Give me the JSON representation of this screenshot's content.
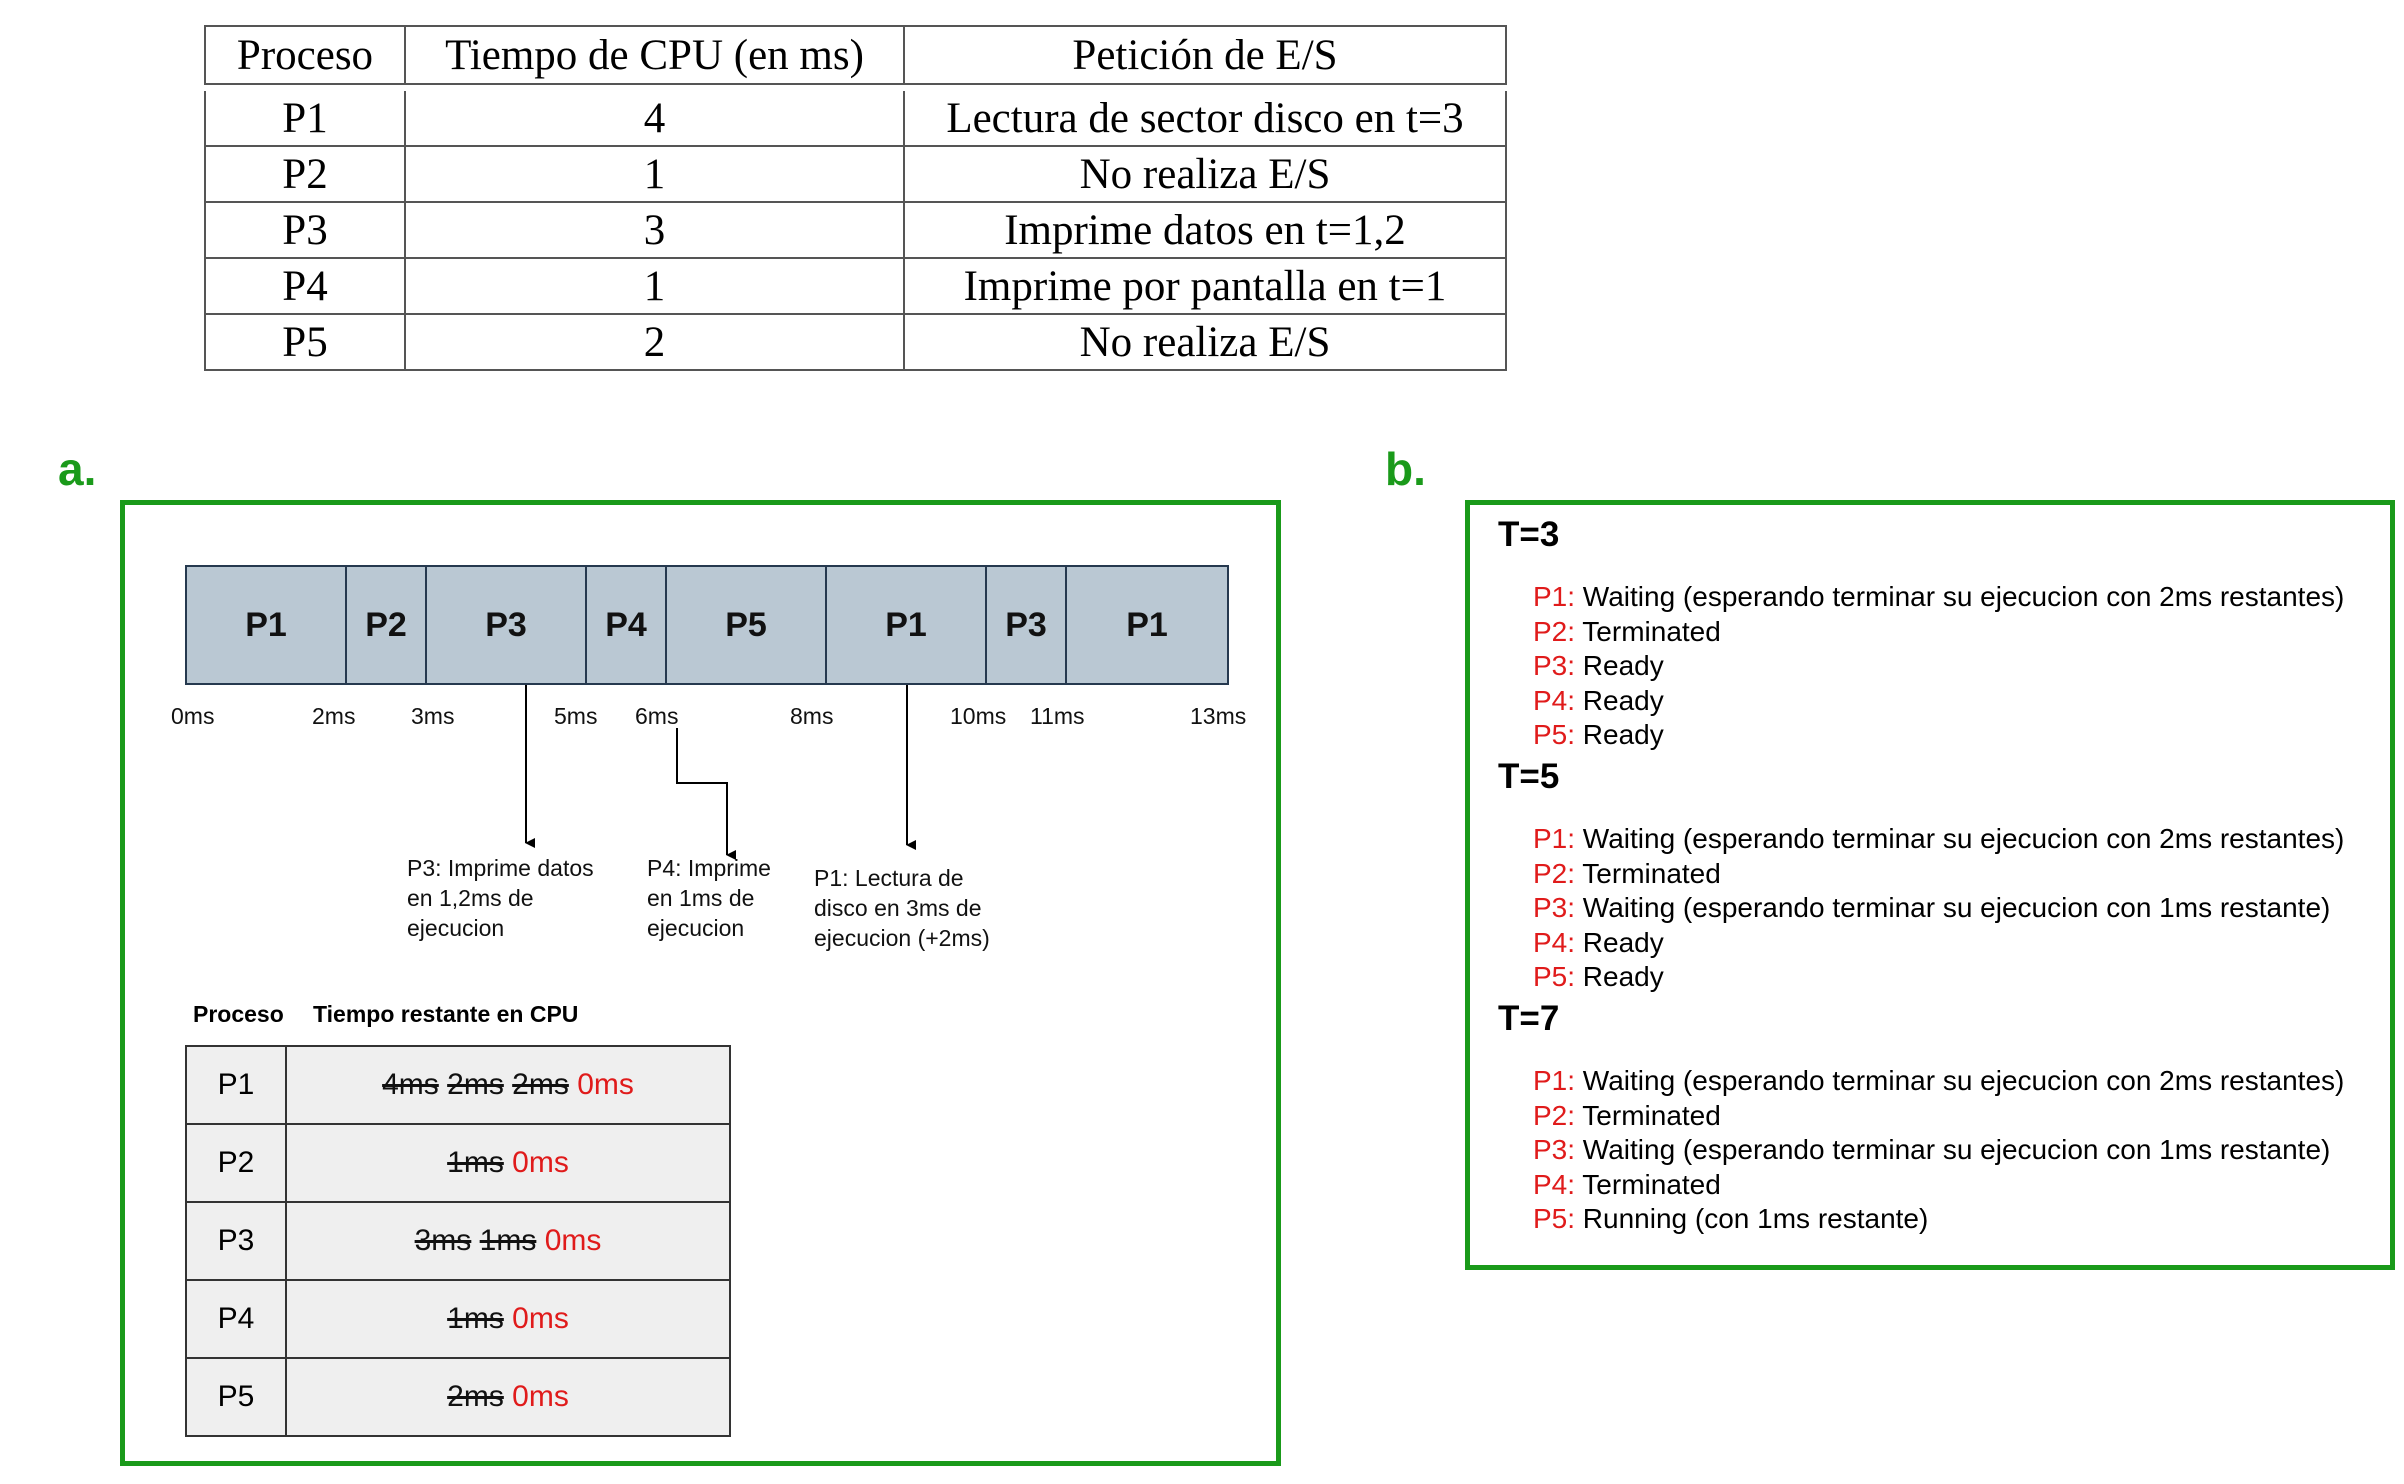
{
  "top_table": {
    "headers": [
      "Proceso",
      "Tiempo de CPU (en ms)",
      "Petición de E/S"
    ],
    "rows": [
      [
        "P1",
        "4",
        "Lectura de sector disco en t=3"
      ],
      [
        "P2",
        "1",
        "No realiza E/S"
      ],
      [
        "P3",
        "3",
        "Imprime datos en t=1,2"
      ],
      [
        "P4",
        "1",
        "Imprime por pantalla en t=1"
      ],
      [
        "P5",
        "2",
        "No realiza E/S"
      ]
    ]
  },
  "section_a": {
    "label": "a.",
    "gantt": [
      {
        "process": "P1",
        "start": 0,
        "end": 2
      },
      {
        "process": "P2",
        "start": 2,
        "end": 3
      },
      {
        "process": "P3",
        "start": 3,
        "end": 5
      },
      {
        "process": "P4",
        "start": 5,
        "end": 6
      },
      {
        "process": "P5",
        "start": 6,
        "end": 8
      },
      {
        "process": "P1",
        "start": 8,
        "end": 10
      },
      {
        "process": "P3",
        "start": 10,
        "end": 11
      },
      {
        "process": "P1",
        "start": 11,
        "end": 13
      }
    ],
    "ticks": [
      "0ms",
      "2ms",
      "3ms",
      "5ms",
      "6ms",
      "8ms",
      "10ms",
      "11ms",
      "13ms"
    ],
    "notes": {
      "p3": [
        "P3: Imprime datos",
        "en 1,2ms de",
        "ejecucion"
      ],
      "p4": [
        "P4: Imprime",
        "en 1ms de",
        "ejecucion"
      ],
      "p1": [
        "P1: Lectura de",
        "disco en 3ms de",
        "ejecucion (+2ms)"
      ]
    },
    "remaining_table": {
      "header_process": "Proceso",
      "header_time": "Tiempo restante en CPU",
      "rows": [
        {
          "process": "P1",
          "struck": [
            "4ms",
            "2ms",
            "2ms"
          ],
          "final": "0ms"
        },
        {
          "process": "P2",
          "struck": [
            "1ms"
          ],
          "final": "0ms"
        },
        {
          "process": "P3",
          "struck": [
            "3ms",
            "1ms"
          ],
          "final": "0ms"
        },
        {
          "process": "P4",
          "struck": [
            "1ms"
          ],
          "final": "0ms"
        },
        {
          "process": "P5",
          "struck": [
            "2ms"
          ],
          "final": "0ms"
        }
      ]
    }
  },
  "section_b": {
    "label": "b.",
    "blocks": [
      {
        "time": "T=3",
        "states": [
          {
            "p": "P1:",
            "s": "Waiting (esperando terminar su ejecucion con 2ms restantes)"
          },
          {
            "p": "P2:",
            "s": "Terminated"
          },
          {
            "p": "P3:",
            "s": "Ready"
          },
          {
            "p": "P4:",
            "s": "Ready"
          },
          {
            "p": "P5:",
            "s": "Ready"
          }
        ]
      },
      {
        "time": "T=5",
        "states": [
          {
            "p": "P1:",
            "s": "Waiting (esperando terminar su ejecucion con 2ms restantes)"
          },
          {
            "p": "P2:",
            "s": "Terminated"
          },
          {
            "p": "P3:",
            "s": "Waiting (esperando terminar su ejecucion con 1ms restante)"
          },
          {
            "p": "P4:",
            "s": "Ready"
          },
          {
            "p": "P5:",
            "s": "Ready"
          }
        ]
      },
      {
        "time": "T=7",
        "states": [
          {
            "p": "P1:",
            "s": "Waiting (esperando terminar su ejecucion con 2ms restantes)"
          },
          {
            "p": "P2:",
            "s": "Terminated"
          },
          {
            "p": "P3:",
            "s": "Waiting (esperando terminar su ejecucion con 1ms restante)"
          },
          {
            "p": "P4:",
            "s": "Terminated"
          },
          {
            "p": "P5:",
            "s": "Running (con 1ms restante)"
          }
        ]
      }
    ]
  },
  "colors": {
    "accent_green": "#1a9a1a",
    "gantt_fill": "#bac8d3",
    "highlight_red": "#e01b1b"
  }
}
